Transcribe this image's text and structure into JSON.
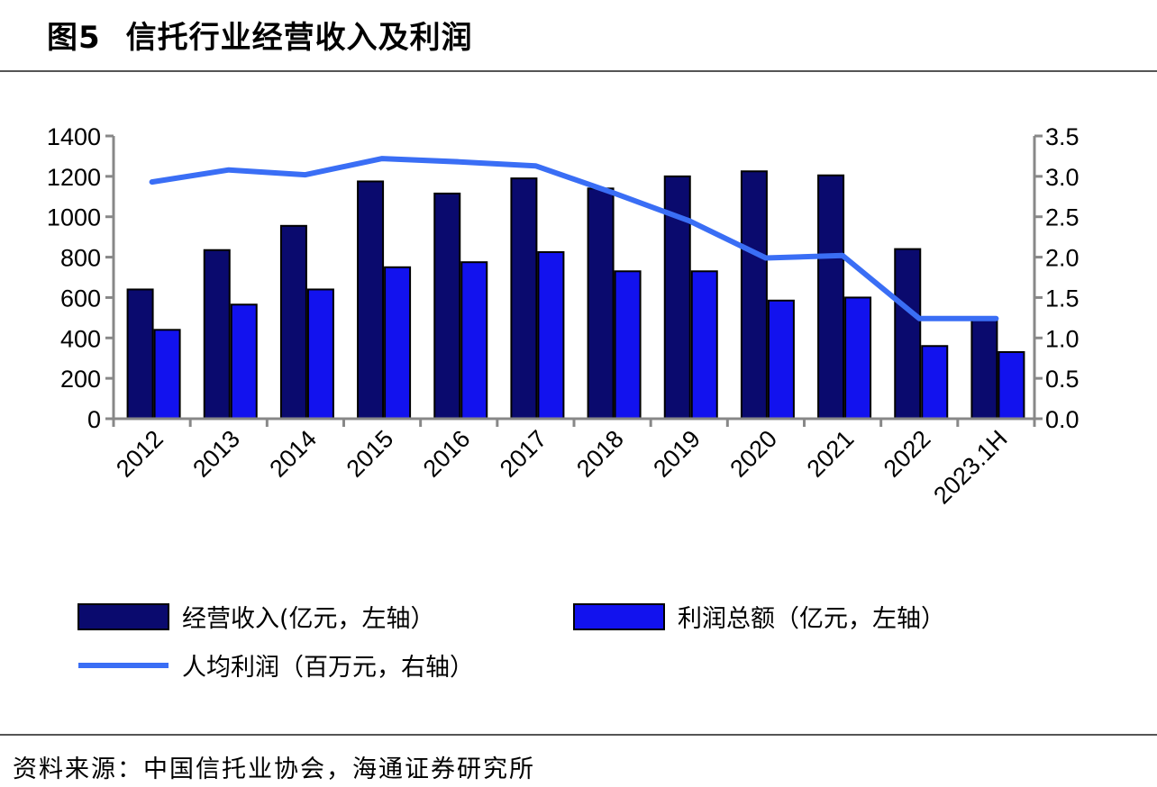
{
  "header": {
    "figure_label": "图5",
    "title": "信托行业经营收入及利润"
  },
  "footer": {
    "source": "资料来源：中国信托业协会，海通证券研究所"
  },
  "chart_data": {
    "type": "bar",
    "title": "信托行业经营收入及利润",
    "categories": [
      "2012",
      "2013",
      "2014",
      "2015",
      "2016",
      "2017",
      "2018",
      "2019",
      "2020",
      "2021",
      "2022",
      "2023.1H"
    ],
    "series": [
      {
        "name": "经营收入(亿元，左轴）",
        "type": "bar",
        "axis": "left",
        "color": "#0a0a6e",
        "values": [
          640,
          835,
          955,
          1175,
          1115,
          1190,
          1140,
          1200,
          1225,
          1205,
          840,
          500
        ]
      },
      {
        "name": "利润总额（亿元，左轴）",
        "type": "bar",
        "axis": "left",
        "color": "#1212ee",
        "values": [
          440,
          565,
          640,
          750,
          775,
          825,
          730,
          730,
          585,
          600,
          360,
          330
        ]
      },
      {
        "name": "人均利润（百万元，右轴）",
        "type": "line",
        "axis": "right",
        "color": "#3a6ef5",
        "values": [
          2.93,
          3.08,
          3.02,
          3.22,
          3.18,
          3.13,
          2.8,
          2.45,
          1.99,
          2.02,
          1.24,
          1.24
        ]
      }
    ],
    "y_left": {
      "min": 0,
      "max": 1400,
      "ticks": [
        "0",
        "200",
        "400",
        "600",
        "800",
        "1000",
        "1200",
        "1400"
      ]
    },
    "y_right": {
      "min": 0,
      "max": 3.5,
      "ticks": [
        "0.0",
        "0.5",
        "1.0",
        "1.5",
        "2.0",
        "2.5",
        "3.0",
        "3.5"
      ]
    },
    "legend_position": "bottom",
    "grid": false
  }
}
